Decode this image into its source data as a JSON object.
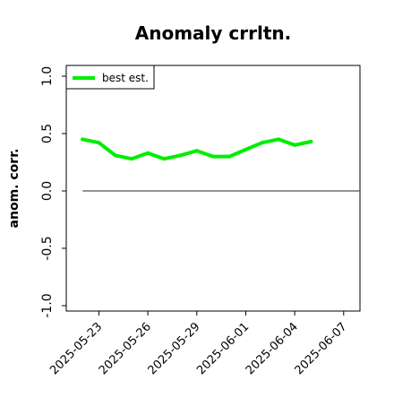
{
  "chart_data": {
    "type": "line",
    "title": "Anomaly crrltn.",
    "xlabel": "",
    "ylabel": "anom. corr.",
    "ylim": [
      -1.0,
      1.0
    ],
    "xlim": [
      "2025-05-21",
      "2025-06-08"
    ],
    "x_ticks": [
      "2025-05-23",
      "2025-05-26",
      "2025-05-29",
      "2025-06-01",
      "2025-06-04",
      "2025-06-07"
    ],
    "y_ticks": [
      "-1.0",
      "-0.5",
      "0.0",
      "0.5",
      "1.0"
    ],
    "grid": false,
    "legend_position": "top-left",
    "zero_line": {
      "y": 0.0,
      "from": "2025-05-22",
      "to": "2025-06-08",
      "color": "#555555"
    },
    "series": [
      {
        "name": "best est.",
        "color": "#00ee00",
        "x": [
          "2025-05-22",
          "2025-05-23",
          "2025-05-24",
          "2025-05-25",
          "2025-05-26",
          "2025-05-27",
          "2025-05-28",
          "2025-05-29",
          "2025-05-30",
          "2025-05-31",
          "2025-06-01",
          "2025-06-02",
          "2025-06-03",
          "2025-06-04",
          "2025-06-05"
        ],
        "values": [
          0.45,
          0.42,
          0.31,
          0.28,
          0.33,
          0.28,
          0.31,
          0.35,
          0.3,
          0.3,
          0.36,
          0.42,
          0.45,
          0.4,
          0.43
        ]
      }
    ]
  }
}
